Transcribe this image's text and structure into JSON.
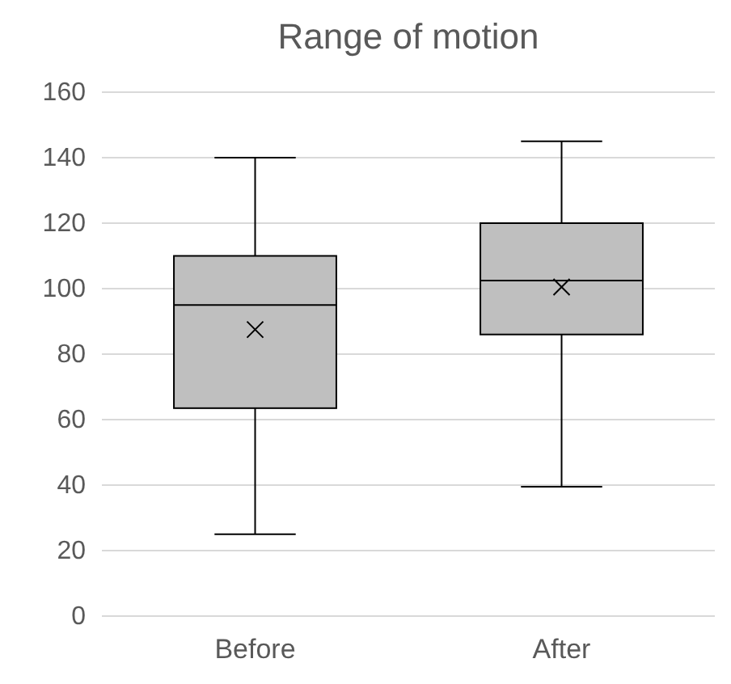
{
  "chart_data": {
    "type": "box",
    "title": "Range of motion",
    "categories": [
      "Before",
      "After"
    ],
    "boxes": [
      {
        "low": 25,
        "q1": 63.5,
        "median": 95,
        "q3": 110,
        "high": 140,
        "mean": 87.5
      },
      {
        "low": 39.5,
        "q1": 86,
        "median": 102.5,
        "q3": 120,
        "high": 145,
        "mean": 100.5
      }
    ],
    "color": "#bfbfbf",
    "ylim": [
      0,
      160
    ],
    "yticks": [
      0,
      20,
      40,
      60,
      80,
      100,
      120,
      140,
      160
    ],
    "grid": "y"
  }
}
